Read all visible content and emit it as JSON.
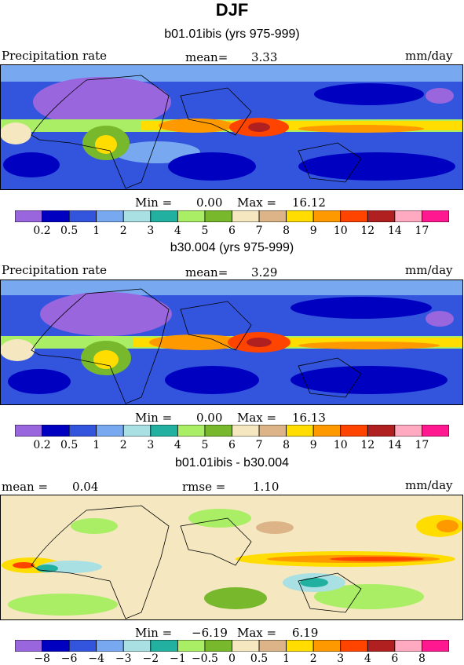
{
  "title": "DJF",
  "colors": [
    "#9966dd",
    "#0000c0",
    "#3355dd",
    "#77a8f0",
    "#a8e0e4",
    "#22b0a0",
    "#aaee66",
    "#77b82c",
    "#f5e8c0",
    "#dcb488",
    "#ffdd00",
    "#ff9900",
    "#ff4400",
    "#b02020",
    "#ffaac0",
    "#ff1890"
  ],
  "chart_data": [
    {
      "type": "heatmap",
      "title": "b01.01ibis (yrs 975-999)",
      "variable_label": "Precipitation rate",
      "mean_label": "mean=",
      "mean_value": "3.33",
      "units": "mm/day",
      "min_label": "Min =",
      "min_value": "0.00",
      "max_label": "Max =",
      "max_value": "16.12",
      "contour_levels": [
        "0.2",
        "0.5",
        "1",
        "2",
        "3",
        "4",
        "5",
        "6",
        "7",
        "8",
        "9",
        "10",
        "12",
        "14",
        "17"
      ]
    },
    {
      "type": "heatmap",
      "title": "b30.004 (yrs 975-999)",
      "variable_label": "Precipitation rate",
      "mean_label": "mean=",
      "mean_value": "3.29",
      "units": "mm/day",
      "min_label": "Min =",
      "min_value": "0.00",
      "max_label": "Max =",
      "max_value": "16.13",
      "contour_levels": [
        "0.2",
        "0.5",
        "1",
        "2",
        "3",
        "4",
        "5",
        "6",
        "7",
        "8",
        "9",
        "10",
        "12",
        "14",
        "17"
      ]
    },
    {
      "type": "heatmap",
      "title": "b01.01ibis - b30.004",
      "mean_label": "mean =",
      "mean_value": "0.04",
      "rmse_label": "rmse =",
      "rmse_value": "1.10",
      "units": "mm/day",
      "min_label": "Min =",
      "min_value": "−6.19",
      "max_label": "Max =",
      "max_value": "6.19",
      "contour_levels": [
        "−8",
        "−6",
        "−4",
        "−3",
        "−2",
        "−1",
        "−0.5",
        "0",
        "0.5",
        "1",
        "2",
        "3",
        "4",
        "6",
        "8"
      ]
    }
  ]
}
